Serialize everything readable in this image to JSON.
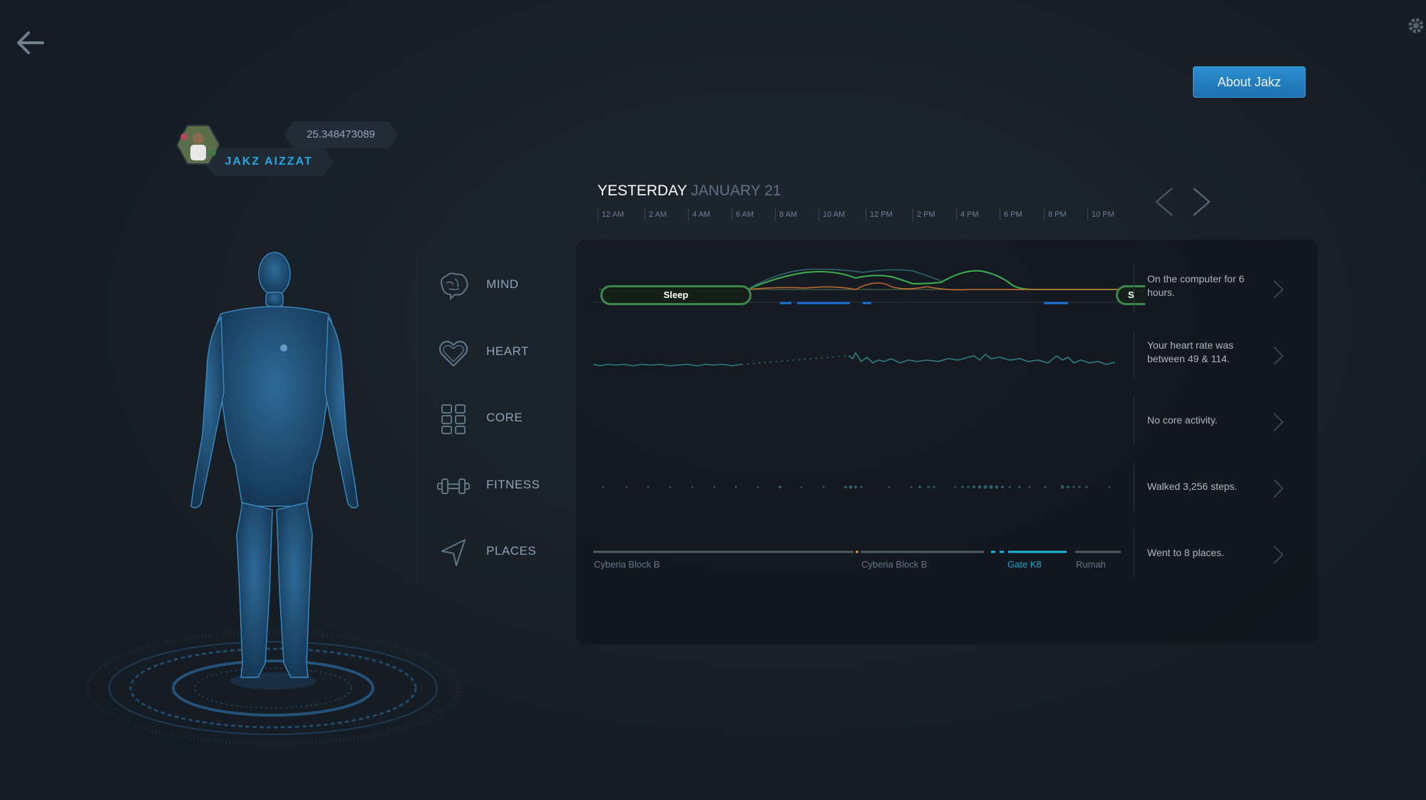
{
  "user": {
    "name": "JAKZ AIZZAT",
    "score": "25.348473089"
  },
  "header": {
    "about_button": "About Jakz"
  },
  "date": {
    "day": "YESTERDAY",
    "date": "JANUARY 21"
  },
  "timeline_ticks": [
    "12 AM",
    "2 AM",
    "4 AM",
    "6 AM",
    "8 AM",
    "10 AM",
    "12 PM",
    "2 PM",
    "4 PM",
    "6 PM",
    "8 PM",
    "10 PM"
  ],
  "categories": [
    {
      "label": "MIND",
      "summary": "On the computer for 6 hours.",
      "icon": "brain-icon"
    },
    {
      "label": "HEART",
      "summary": "Your heart rate was between 49 & 114.",
      "icon": "heart-icon"
    },
    {
      "label": "CORE",
      "summary": "No core activity.",
      "icon": "core-grid-icon"
    },
    {
      "label": "FITNESS",
      "summary": "Walked 3,256 steps.",
      "icon": "dumbbell-icon"
    },
    {
      "label": "PLACES",
      "summary": "Went to 8 places.",
      "icon": "location-arrow-icon"
    }
  ],
  "mind": {
    "sleep_label": "Sleep",
    "sleep_label_truncated": "S"
  },
  "places": [
    "Cyberia Block B",
    "Cyberia Block B",
    "Gate K8",
    "Rumah"
  ],
  "colors": {
    "accent": "#1f8fd0",
    "name": "#27a7dd",
    "sleep": "#3c8a4a",
    "mind_green": "#3fae4f",
    "mind_orange": "#c46a2c",
    "places_hl": "#1fb4d8"
  }
}
